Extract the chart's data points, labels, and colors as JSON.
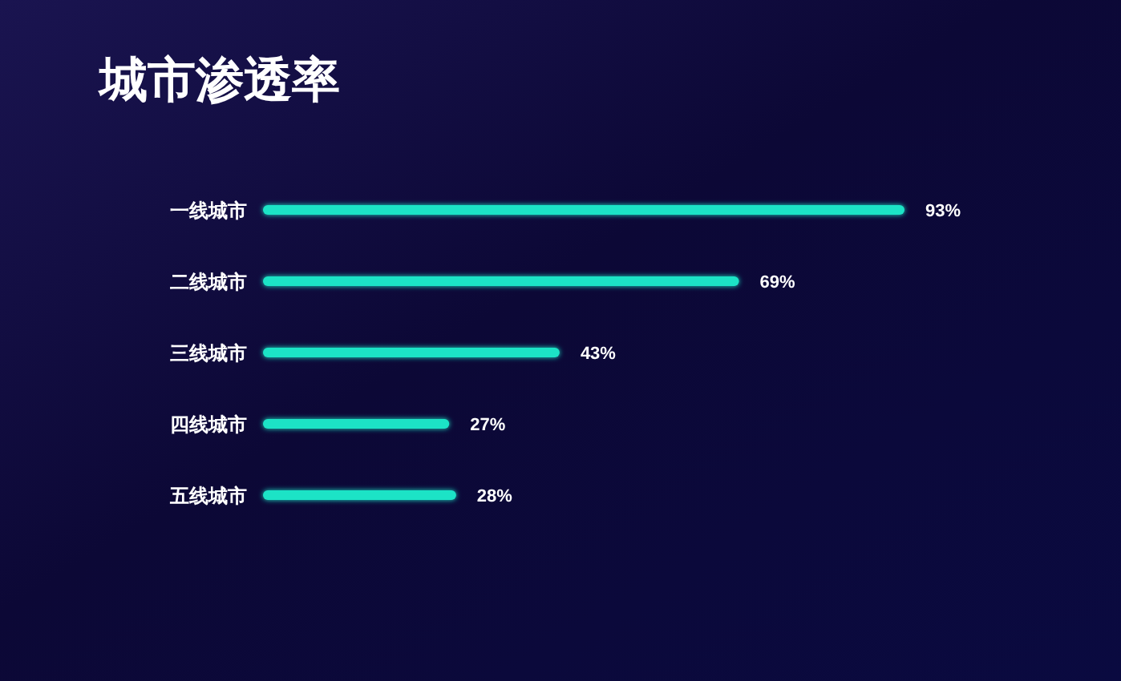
{
  "chart_data": {
    "type": "bar",
    "orientation": "horizontal",
    "title": "城市渗透率",
    "categories": [
      "一线城市",
      "二线城市",
      "三线城市",
      "四线城市",
      "五线城市"
    ],
    "values": [
      93,
      69,
      43,
      27,
      28
    ],
    "value_labels": [
      "93%",
      "69%",
      "43%",
      "27%",
      "28%"
    ],
    "color": "#1de3c6"
  }
}
